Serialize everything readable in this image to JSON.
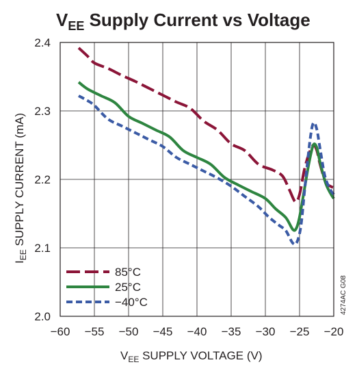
{
  "title": {
    "main": "V",
    "sub": "EE",
    "rest": " Supply Current vs Voltage"
  },
  "figure_id": "4274AC G08",
  "chart_data": {
    "type": "line",
    "xlabel": {
      "main": "V",
      "sub": "EE",
      "rest": " SUPPLY VOLTAGE (V)"
    },
    "ylabel": {
      "main": "I",
      "sub": "EE",
      "rest": " SUPPLY CURRENT (mA)"
    },
    "xlim": [
      -60,
      -20
    ],
    "ylim": [
      2.0,
      2.4
    ],
    "x_ticks": [
      -60,
      -55,
      -50,
      -45,
      -40,
      -35,
      -30,
      -25,
      -20
    ],
    "x_tick_labels": [
      "−60",
      "−55",
      "−50",
      "−45",
      "−40",
      "−35",
      "−30",
      "−25",
      "−20"
    ],
    "y_ticks": [
      2.0,
      2.1,
      2.2,
      2.3,
      2.4
    ],
    "y_tick_labels": [
      "2.0",
      "2.1",
      "2.2",
      "2.3",
      "2.4"
    ],
    "grid": true,
    "legend_position": "bottom-left",
    "series": [
      {
        "name": "85°C",
        "color": "#8b1538",
        "dash": "long-dash",
        "points": [
          [
            -57.3,
            2.392
          ],
          [
            -56,
            2.38
          ],
          [
            -55,
            2.37
          ],
          [
            -53,
            2.362
          ],
          [
            -51,
            2.352
          ],
          [
            -49,
            2.343
          ],
          [
            -47,
            2.333
          ],
          [
            -45,
            2.323
          ],
          [
            -43,
            2.313
          ],
          [
            -41,
            2.304
          ],
          [
            -39,
            2.285
          ],
          [
            -37,
            2.272
          ],
          [
            -35,
            2.252
          ],
          [
            -33,
            2.242
          ],
          [
            -31,
            2.222
          ],
          [
            -29,
            2.214
          ],
          [
            -27.5,
            2.205
          ],
          [
            -26.5,
            2.185
          ],
          [
            -25.6,
            2.167
          ],
          [
            -25,
            2.178
          ],
          [
            -24.3,
            2.214
          ],
          [
            -23.6,
            2.238
          ],
          [
            -23,
            2.25
          ],
          [
            -22.5,
            2.243
          ],
          [
            -22,
            2.222
          ],
          [
            -21.2,
            2.196
          ],
          [
            -20.5,
            2.19
          ],
          [
            -20,
            2.188
          ]
        ]
      },
      {
        "name": "25°C",
        "color": "#2e8540",
        "dash": "solid",
        "points": [
          [
            -57.3,
            2.342
          ],
          [
            -56,
            2.332
          ],
          [
            -54,
            2.322
          ],
          [
            -52,
            2.312
          ],
          [
            -50,
            2.292
          ],
          [
            -48,
            2.282
          ],
          [
            -46,
            2.272
          ],
          [
            -44,
            2.262
          ],
          [
            -42,
            2.242
          ],
          [
            -40,
            2.232
          ],
          [
            -38,
            2.222
          ],
          [
            -36,
            2.203
          ],
          [
            -34,
            2.192
          ],
          [
            -32,
            2.182
          ],
          [
            -30,
            2.172
          ],
          [
            -28.5,
            2.157
          ],
          [
            -27,
            2.144
          ],
          [
            -26,
            2.127
          ],
          [
            -25.5,
            2.128
          ],
          [
            -25,
            2.145
          ],
          [
            -24.3,
            2.185
          ],
          [
            -23.6,
            2.225
          ],
          [
            -23,
            2.25
          ],
          [
            -22.5,
            2.247
          ],
          [
            -22,
            2.225
          ],
          [
            -21.2,
            2.195
          ],
          [
            -20.5,
            2.18
          ],
          [
            -20,
            2.172
          ]
        ]
      },
      {
        "name": "−40°C",
        "color": "#3b5ba5",
        "dash": "short-dash",
        "points": [
          [
            -57.3,
            2.322
          ],
          [
            -56,
            2.315
          ],
          [
            -55,
            2.308
          ],
          [
            -53,
            2.288
          ],
          [
            -51,
            2.278
          ],
          [
            -49,
            2.268
          ],
          [
            -47,
            2.258
          ],
          [
            -45,
            2.248
          ],
          [
            -43,
            2.232
          ],
          [
            -41,
            2.222
          ],
          [
            -39,
            2.212
          ],
          [
            -37,
            2.202
          ],
          [
            -35,
            2.19
          ],
          [
            -33,
            2.175
          ],
          [
            -31,
            2.16
          ],
          [
            -29.5,
            2.145
          ],
          [
            -28,
            2.133
          ],
          [
            -27,
            2.125
          ],
          [
            -26,
            2.107
          ],
          [
            -25.4,
            2.108
          ],
          [
            -24.8,
            2.132
          ],
          [
            -24.2,
            2.19
          ],
          [
            -23.5,
            2.255
          ],
          [
            -23,
            2.282
          ],
          [
            -22.5,
            2.274
          ],
          [
            -22,
            2.245
          ],
          [
            -21.3,
            2.205
          ],
          [
            -20.5,
            2.185
          ],
          [
            -20,
            2.178
          ]
        ]
      }
    ]
  }
}
